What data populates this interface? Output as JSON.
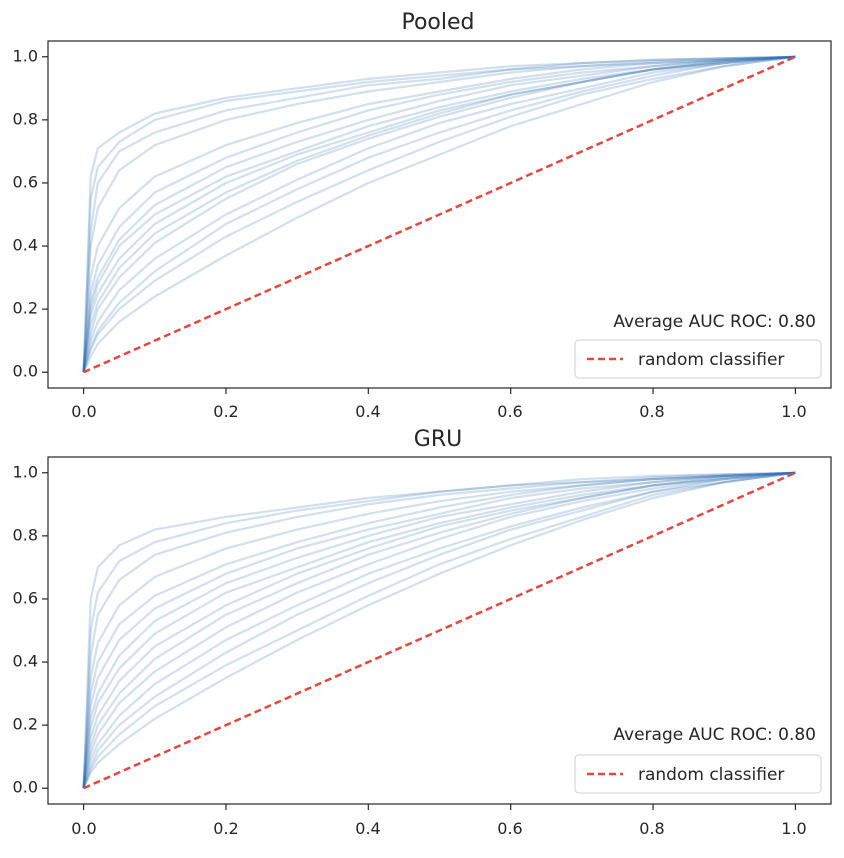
{
  "chart_data": [
    {
      "type": "line",
      "title": "Pooled",
      "xlabel": "",
      "ylabel": "",
      "xlim": [
        -0.05,
        1.05
      ],
      "ylim": [
        -0.05,
        1.05
      ],
      "xticks": [
        "0.0",
        "0.2",
        "0.4",
        "0.6",
        "0.8",
        "1.0"
      ],
      "yticks": [
        "0.0",
        "0.2",
        "0.4",
        "0.6",
        "0.8",
        "1.0"
      ],
      "annotation": "Average AUC ROC: 0.80",
      "legend": {
        "position": "lower right",
        "entries": [
          "random classifier"
        ]
      },
      "grid": false,
      "curve_color": "#2f6fb0",
      "curve_opacity": 0.22,
      "baseline_color": "#e8453c",
      "baseline": [
        [
          0,
          0
        ],
        [
          1,
          1
        ]
      ],
      "curve_x": [
        0,
        0.01,
        0.02,
        0.05,
        0.1,
        0.2,
        0.3,
        0.4,
        0.5,
        0.6,
        0.7,
        0.8,
        0.9,
        1
      ],
      "roc_curves": [
        [
          0,
          0.62,
          0.71,
          0.76,
          0.82,
          0.87,
          0.9,
          0.93,
          0.95,
          0.97,
          0.98,
          0.99,
          0.995,
          1
        ],
        [
          0,
          0.55,
          0.65,
          0.73,
          0.8,
          0.86,
          0.89,
          0.92,
          0.94,
          0.96,
          0.98,
          0.99,
          0.995,
          1
        ],
        [
          0,
          0.45,
          0.6,
          0.7,
          0.76,
          0.83,
          0.87,
          0.91,
          0.93,
          0.96,
          0.97,
          0.985,
          0.995,
          1
        ],
        [
          0,
          0.4,
          0.52,
          0.64,
          0.72,
          0.8,
          0.85,
          0.89,
          0.92,
          0.95,
          0.97,
          0.98,
          0.99,
          1
        ],
        [
          0,
          0.3,
          0.4,
          0.52,
          0.62,
          0.72,
          0.79,
          0.85,
          0.89,
          0.93,
          0.96,
          0.98,
          0.99,
          1
        ],
        [
          0,
          0.25,
          0.34,
          0.46,
          0.57,
          0.68,
          0.76,
          0.83,
          0.88,
          0.92,
          0.95,
          0.97,
          0.99,
          1
        ],
        [
          0,
          0.22,
          0.3,
          0.42,
          0.53,
          0.65,
          0.73,
          0.8,
          0.86,
          0.91,
          0.94,
          0.97,
          0.99,
          1
        ],
        [
          0,
          0.2,
          0.28,
          0.4,
          0.5,
          0.62,
          0.7,
          0.78,
          0.84,
          0.89,
          0.93,
          0.96,
          0.985,
          1
        ],
        [
          0,
          0.18,
          0.25,
          0.36,
          0.47,
          0.6,
          0.69,
          0.76,
          0.83,
          0.88,
          0.92,
          0.96,
          0.985,
          1
        ],
        [
          0,
          0.15,
          0.22,
          0.33,
          0.44,
          0.57,
          0.67,
          0.75,
          0.82,
          0.88,
          0.92,
          0.96,
          0.985,
          1
        ],
        [
          0,
          0.12,
          0.2,
          0.3,
          0.41,
          0.55,
          0.66,
          0.74,
          0.81,
          0.87,
          0.92,
          0.96,
          0.98,
          1
        ],
        [
          0,
          0.1,
          0.16,
          0.26,
          0.36,
          0.5,
          0.61,
          0.71,
          0.79,
          0.85,
          0.9,
          0.95,
          0.98,
          1
        ],
        [
          0,
          0.08,
          0.13,
          0.22,
          0.32,
          0.47,
          0.58,
          0.68,
          0.76,
          0.83,
          0.89,
          0.94,
          0.98,
          1
        ],
        [
          0,
          0.07,
          0.12,
          0.2,
          0.29,
          0.43,
          0.54,
          0.64,
          0.73,
          0.81,
          0.88,
          0.93,
          0.97,
          1
        ],
        [
          0,
          0.05,
          0.09,
          0.16,
          0.24,
          0.37,
          0.49,
          0.6,
          0.69,
          0.78,
          0.85,
          0.92,
          0.97,
          1
        ]
      ]
    },
    {
      "type": "line",
      "title": "GRU",
      "xlabel": "",
      "ylabel": "",
      "xlim": [
        -0.05,
        1.05
      ],
      "ylim": [
        -0.05,
        1.05
      ],
      "xticks": [
        "0.0",
        "0.2",
        "0.4",
        "0.6",
        "0.8",
        "1.0"
      ],
      "yticks": [
        "0.0",
        "0.2",
        "0.4",
        "0.6",
        "0.8",
        "1.0"
      ],
      "annotation": "Average AUC ROC: 0.80",
      "legend": {
        "position": "lower right",
        "entries": [
          "random classifier"
        ]
      },
      "grid": false,
      "curve_color": "#2f6fb0",
      "curve_opacity": 0.22,
      "baseline_color": "#e8453c",
      "baseline": [
        [
          0,
          0
        ],
        [
          1,
          1
        ]
      ],
      "curve_x": [
        0,
        0.01,
        0.02,
        0.05,
        0.1,
        0.2,
        0.3,
        0.4,
        0.5,
        0.6,
        0.7,
        0.8,
        0.9,
        1
      ],
      "roc_curves": [
        [
          0,
          0.6,
          0.7,
          0.77,
          0.82,
          0.86,
          0.89,
          0.92,
          0.94,
          0.96,
          0.98,
          0.99,
          0.995,
          1
        ],
        [
          0,
          0.5,
          0.62,
          0.72,
          0.78,
          0.84,
          0.88,
          0.91,
          0.94,
          0.96,
          0.97,
          0.985,
          0.995,
          1
        ],
        [
          0,
          0.42,
          0.55,
          0.66,
          0.74,
          0.81,
          0.86,
          0.9,
          0.93,
          0.95,
          0.97,
          0.98,
          0.99,
          1
        ],
        [
          0,
          0.35,
          0.46,
          0.58,
          0.67,
          0.76,
          0.82,
          0.87,
          0.91,
          0.94,
          0.96,
          0.98,
          0.99,
          1
        ],
        [
          0,
          0.3,
          0.4,
          0.52,
          0.61,
          0.71,
          0.78,
          0.84,
          0.89,
          0.93,
          0.96,
          0.98,
          0.99,
          1
        ],
        [
          0,
          0.26,
          0.35,
          0.47,
          0.57,
          0.68,
          0.76,
          0.82,
          0.87,
          0.92,
          0.95,
          0.97,
          0.99,
          1
        ],
        [
          0,
          0.22,
          0.3,
          0.42,
          0.53,
          0.65,
          0.73,
          0.8,
          0.86,
          0.9,
          0.94,
          0.97,
          0.99,
          1
        ],
        [
          0,
          0.19,
          0.27,
          0.38,
          0.49,
          0.62,
          0.7,
          0.78,
          0.84,
          0.89,
          0.93,
          0.96,
          0.985,
          1
        ],
        [
          0,
          0.16,
          0.23,
          0.34,
          0.45,
          0.58,
          0.68,
          0.76,
          0.83,
          0.88,
          0.92,
          0.96,
          0.985,
          1
        ],
        [
          0,
          0.13,
          0.2,
          0.3,
          0.41,
          0.55,
          0.65,
          0.74,
          0.81,
          0.87,
          0.92,
          0.96,
          0.98,
          1
        ],
        [
          0,
          0.11,
          0.17,
          0.27,
          0.37,
          0.51,
          0.62,
          0.71,
          0.79,
          0.86,
          0.91,
          0.95,
          0.98,
          1
        ],
        [
          0,
          0.09,
          0.14,
          0.23,
          0.33,
          0.47,
          0.58,
          0.68,
          0.76,
          0.83,
          0.89,
          0.94,
          0.98,
          1
        ],
        [
          0,
          0.07,
          0.12,
          0.2,
          0.29,
          0.43,
          0.55,
          0.65,
          0.74,
          0.82,
          0.88,
          0.94,
          0.97,
          1
        ],
        [
          0,
          0.06,
          0.1,
          0.17,
          0.26,
          0.39,
          0.5,
          0.61,
          0.71,
          0.79,
          0.86,
          0.93,
          0.97,
          1
        ],
        [
          0,
          0.05,
          0.08,
          0.14,
          0.22,
          0.35,
          0.47,
          0.58,
          0.68,
          0.77,
          0.85,
          0.92,
          0.97,
          1
        ]
      ]
    }
  ]
}
